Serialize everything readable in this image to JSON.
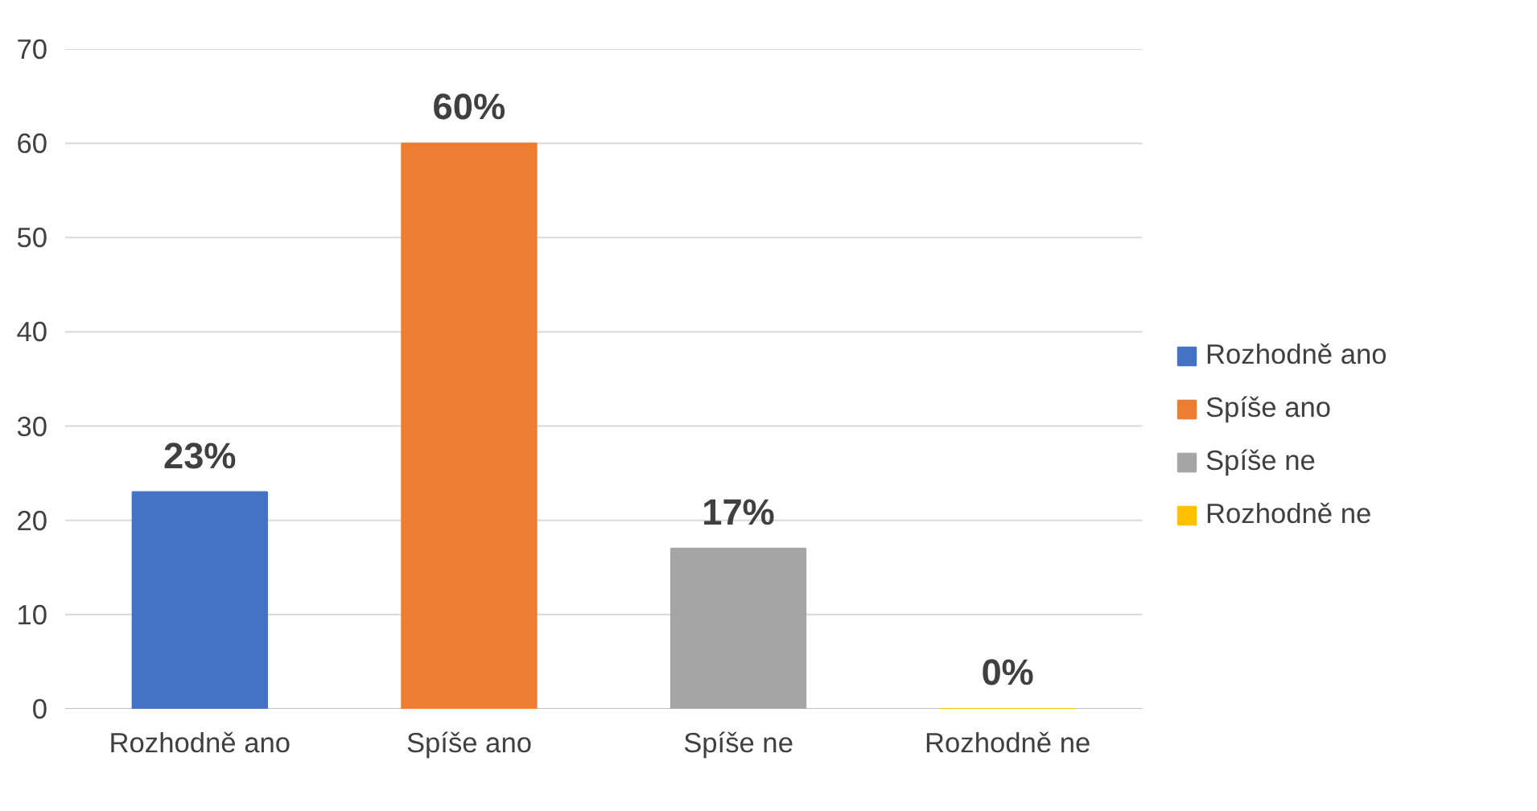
{
  "chart_data": {
    "type": "bar",
    "categories": [
      "Rozhodně ano",
      "Spíše ano",
      "Spíše ne",
      "Rozhodně ne"
    ],
    "series": [
      {
        "name": "Rozhodně ano",
        "color": "#4472c4",
        "values": [
          23,
          null,
          null,
          null
        ],
        "value_labels": [
          "23%",
          null,
          null,
          null
        ]
      },
      {
        "name": "Spíše ano",
        "color": "#ed7d31",
        "values": [
          null,
          60,
          null,
          null
        ],
        "value_labels": [
          null,
          "60%",
          null,
          null
        ]
      },
      {
        "name": "Spíše ne",
        "color": "#a5a5a5",
        "values": [
          null,
          null,
          17,
          null
        ],
        "value_labels": [
          null,
          null,
          "17%",
          null
        ]
      },
      {
        "name": "Rozhodně ne",
        "color": "#ffc000",
        "values": [
          null,
          null,
          null,
          0
        ],
        "value_labels": [
          null,
          null,
          null,
          "0%"
        ]
      }
    ],
    "ylim": [
      0,
      70
    ],
    "yticks": [
      0,
      10,
      20,
      30,
      40,
      50,
      60,
      70
    ],
    "grid": "y",
    "legend": "right"
  }
}
